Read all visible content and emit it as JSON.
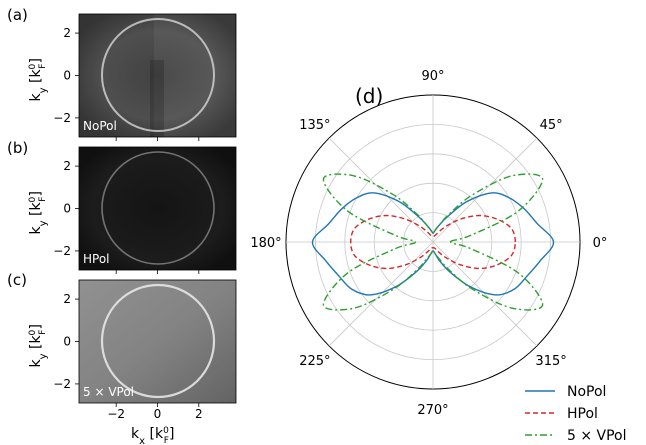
{
  "panels": {
    "a": {
      "tag": "(a)",
      "label": "NoPol",
      "ylabel": "k_y [k_F^0]"
    },
    "b": {
      "tag": "(b)",
      "label": "HPol",
      "ylabel": "k_y [k_F^0]"
    },
    "c": {
      "tag": "(c)",
      "label": "5 × VPol",
      "ylabel": "k_y [k_F^0]"
    },
    "d": {
      "tag": "(d)"
    }
  },
  "image_axes": {
    "y_ticks": [
      "2",
      "0",
      "−2"
    ],
    "x_ticks": [
      "−2",
      "0",
      "2"
    ],
    "xlabel_main": "k",
    "xlabel_sub": "x",
    "unit_open": " [k",
    "unit_sup": "0",
    "unit_sub": "F",
    "unit_close": "]",
    "ylabel_main": "k",
    "ylabel_sub": "y"
  },
  "chart_data": {
    "type": "polar-line",
    "angle_labels": [
      "0°",
      "45°",
      "90°",
      "135°",
      "180°",
      "225°",
      "270°",
      "315°"
    ],
    "radial_gridlines": 4,
    "grid": true,
    "legend_position": "bottom-right",
    "series": [
      {
        "name": "NoPol",
        "color": "#1f77b4",
        "style": "solid",
        "angles_deg": [
          0,
          10,
          20,
          30,
          40,
          50,
          60,
          70,
          80,
          90,
          100,
          110,
          120,
          130,
          140,
          150,
          160,
          170,
          180,
          190,
          200,
          210,
          220,
          230,
          240,
          250,
          260,
          270,
          280,
          290,
          300,
          310,
          320,
          330,
          340,
          350
        ],
        "r": [
          0.82,
          0.72,
          0.66,
          0.6,
          0.52,
          0.36,
          0.2,
          0.12,
          0.08,
          0.06,
          0.08,
          0.12,
          0.2,
          0.36,
          0.52,
          0.6,
          0.66,
          0.72,
          0.82,
          0.74,
          0.68,
          0.64,
          0.56,
          0.4,
          0.24,
          0.14,
          0.08,
          0.06,
          0.08,
          0.14,
          0.24,
          0.4,
          0.56,
          0.64,
          0.68,
          0.74
        ]
      },
      {
        "name": "HPol",
        "color": "#d62728",
        "style": "dashed",
        "angles_deg": [
          0,
          10,
          20,
          30,
          40,
          50,
          60,
          70,
          80,
          90,
          100,
          110,
          120,
          130,
          140,
          150,
          160,
          170,
          180,
          190,
          200,
          210,
          220,
          230,
          240,
          250,
          260,
          270,
          280,
          290,
          300,
          310,
          320,
          330,
          340,
          350
        ],
        "r": [
          0.56,
          0.54,
          0.46,
          0.36,
          0.24,
          0.14,
          0.08,
          0.05,
          0.04,
          0.04,
          0.04,
          0.05,
          0.08,
          0.14,
          0.24,
          0.36,
          0.46,
          0.54,
          0.56,
          0.54,
          0.46,
          0.36,
          0.24,
          0.14,
          0.08,
          0.05,
          0.04,
          0.04,
          0.04,
          0.05,
          0.08,
          0.14,
          0.24,
          0.36,
          0.46,
          0.54
        ]
      },
      {
        "name": "5 × VPol",
        "color": "#2ca02c",
        "style": "dashdot",
        "angles_deg": [
          0,
          10,
          20,
          30,
          40,
          50,
          60,
          70,
          80,
          90,
          100,
          110,
          120,
          130,
          140,
          150,
          160,
          170,
          180,
          190,
          200,
          210,
          220,
          230,
          240,
          250,
          260,
          270,
          280,
          290,
          300,
          310,
          320,
          330,
          340,
          350
        ],
        "r": [
          0.12,
          0.26,
          0.62,
          0.86,
          0.7,
          0.42,
          0.22,
          0.12,
          0.08,
          0.06,
          0.08,
          0.12,
          0.22,
          0.42,
          0.7,
          0.86,
          0.62,
          0.26,
          0.12,
          0.26,
          0.62,
          0.86,
          0.7,
          0.42,
          0.22,
          0.12,
          0.08,
          0.06,
          0.08,
          0.12,
          0.22,
          0.42,
          0.7,
          0.86,
          0.62,
          0.26
        ]
      }
    ]
  }
}
